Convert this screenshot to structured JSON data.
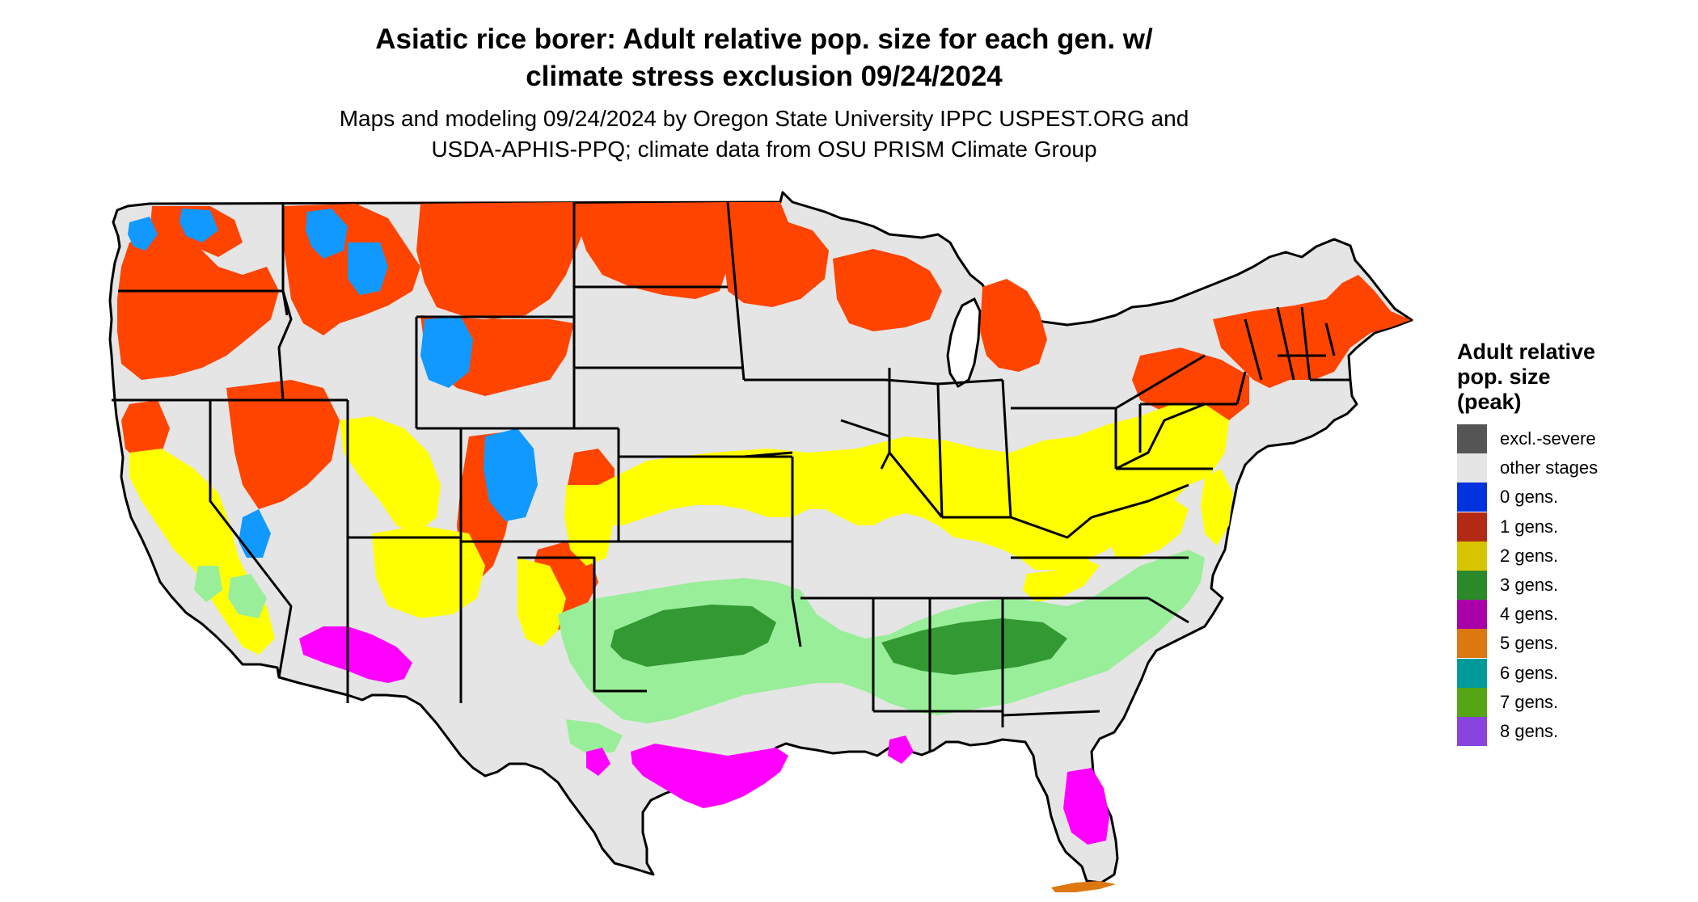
{
  "title": {
    "line1": "Asiatic rice borer: Adult relative pop. size for each gen. w/",
    "line2": "climate stress exclusion 09/24/2024"
  },
  "subtitle": {
    "line1": "Maps and modeling 09/24/2024 by Oregon State University IPPC USPEST.ORG and",
    "line2": "USDA-APHIS-PPQ; climate data from OSU PRISM Climate Group"
  },
  "legend": {
    "title_line1": "Adult relative",
    "title_line2": "pop. size",
    "title_line3": "(peak)",
    "items": [
      {
        "label": "excl.-severe",
        "color": "#555555"
      },
      {
        "label": "other stages",
        "color": "#e5e5e5"
      },
      {
        "label": "0 gens.",
        "color": "#0033dd"
      },
      {
        "label": "1 gens.",
        "color": "#b22a16"
      },
      {
        "label": "2 gens.",
        "color": "#d8c400"
      },
      {
        "label": "3 gens.",
        "color": "#2a8a2a"
      },
      {
        "label": "4 gens.",
        "color": "#aa00aa"
      },
      {
        "label": "5 gens.",
        "color": "#dd7711"
      },
      {
        "label": "6 gens.",
        "color": "#009a9a"
      },
      {
        "label": "7 gens.",
        "color": "#55a515"
      },
      {
        "label": "8 gens.",
        "color": "#8844dd"
      }
    ]
  },
  "map_colors": {
    "land": "#e5e5e5",
    "one_gen_bright": "#ff4400",
    "one_gen_dark": "#cc3300",
    "two_gen_bright": "#ffff00",
    "three_gen_light": "#99ee99",
    "three_gen_dark": "#339933",
    "four_gen_magenta": "#ff00ff",
    "zero_gen_blue": "#1199ff",
    "border": "#000000"
  }
}
